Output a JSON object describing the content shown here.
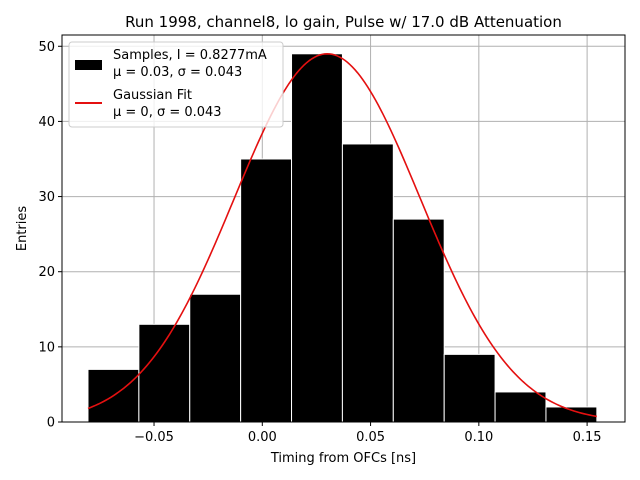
{
  "chart_data": {
    "type": "bar",
    "title": "Run 1998, channel8, lo gain, Pulse w/ 17.0 dB Attenuation",
    "xlabel": "Timing from OFCs [ns]",
    "ylabel": "Entries",
    "xlim": [
      -0.0925,
      0.1675
    ],
    "ylim": [
      0,
      51.5
    ],
    "xticks": [
      -0.05,
      0.0,
      0.05,
      0.1,
      0.15
    ],
    "xtick_labels": [
      "−0.05",
      "0.00",
      "0.05",
      "0.10",
      "0.15"
    ],
    "yticks": [
      0,
      10,
      20,
      30,
      40,
      50
    ],
    "ytick_labels": [
      "0",
      "10",
      "20",
      "30",
      "40",
      "50"
    ],
    "grid": true,
    "legend_position": "top-left",
    "histogram": {
      "bin_edges": [
        -0.0805,
        -0.057,
        -0.0335,
        -0.01,
        0.0135,
        0.037,
        0.0605,
        0.084,
        0.1075,
        0.131,
        0.1545
      ],
      "counts": [
        7,
        13,
        17,
        35,
        49,
        37,
        27,
        9,
        4,
        2
      ],
      "color": "#000000",
      "edge_color": "#ffffff"
    },
    "fit": {
      "amplitude": 49,
      "mean": 0.03,
      "sigma": 0.043,
      "x_range": [
        -0.0805,
        0.1545
      ],
      "color": "#e41010"
    },
    "legend": [
      {
        "line1": "Samples, I = 0.8277mA",
        "line2": "μ = 0.03, σ = 0.043",
        "kind": "patch"
      },
      {
        "line1": "Gaussian Fit",
        "line2": "μ = 0, σ = 0.043",
        "kind": "line"
      }
    ]
  }
}
